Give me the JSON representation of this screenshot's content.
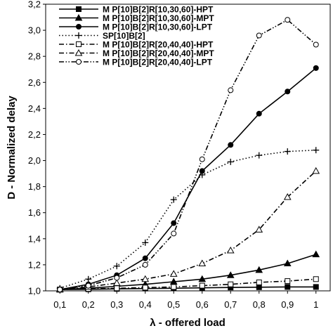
{
  "chart_data": {
    "type": "line",
    "title": "",
    "xlabel": "λ - offered load",
    "ylabel": "D - Normalized delay",
    "x": [
      0.1,
      0.2,
      0.3,
      0.4,
      0.5,
      0.6,
      0.7,
      0.8,
      0.9,
      1.0
    ],
    "x_tick_labels": [
      "0,1",
      "0,2",
      "0,3",
      "0,4",
      "0,5",
      "0,6",
      "0,7",
      "0,8",
      "0,9",
      "1"
    ],
    "y_tick_labels": [
      "1,0",
      "1,2",
      "1,4",
      "1,6",
      "1,8",
      "2,0",
      "2,2",
      "2,4",
      "2,6",
      "2,8",
      "3,0",
      "3,2"
    ],
    "xlim": [
      0.05,
      1.05
    ],
    "ylim": [
      1.0,
      3.2
    ],
    "y_ticks": [
      1.0,
      1.2,
      1.4,
      1.6,
      1.8,
      2.0,
      2.2,
      2.4,
      2.6,
      2.8,
      3.0,
      3.2
    ],
    "grid": false,
    "legend_position": "top-left",
    "series": [
      {
        "name": "M P[10]B[2]R[10,30,60]-HPT",
        "marker": "filled-square",
        "line": "solid",
        "color": "#000000",
        "values": [
          1.01,
          1.012,
          1.015,
          1.018,
          1.02,
          1.023,
          1.026,
          1.028,
          1.03,
          1.03
        ]
      },
      {
        "name": "M P[10]B[2]R[10,30,60]-MPT",
        "marker": "filled-triangle",
        "line": "solid",
        "color": "#000000",
        "values": [
          1.01,
          1.02,
          1.035,
          1.05,
          1.07,
          1.09,
          1.12,
          1.16,
          1.21,
          1.28
        ]
      },
      {
        "name": "M P[10]B[2]R[10,30,60]-LPT",
        "marker": "filled-circle",
        "line": "solid",
        "color": "#000000",
        "values": [
          1.01,
          1.05,
          1.12,
          1.25,
          1.52,
          1.92,
          2.12,
          2.36,
          2.53,
          2.71
        ]
      },
      {
        "name": "SP[10]B[2]",
        "marker": "plus",
        "line": "dotted",
        "color": "#000000",
        "values": [
          1.02,
          1.09,
          1.19,
          1.37,
          1.7,
          1.89,
          1.99,
          2.04,
          2.07,
          2.08
        ]
      },
      {
        "name": "M P[10]B[2]R[20,40,40]-HPT",
        "marker": "open-square",
        "line": "dash-dot",
        "color": "#000000",
        "values": [
          1.01,
          1.015,
          1.02,
          1.025,
          1.03,
          1.04,
          1.05,
          1.065,
          1.075,
          1.09
        ]
      },
      {
        "name": "M P[10]B[2]R[20,40,40]-MPT",
        "marker": "open-triangle",
        "line": "dash-dot",
        "color": "#000000",
        "values": [
          1.01,
          1.03,
          1.06,
          1.09,
          1.13,
          1.21,
          1.31,
          1.47,
          1.72,
          1.92
        ]
      },
      {
        "name": "M P[10]B[2]R[20,40,40]-LPT",
        "marker": "open-circle",
        "line": "dash-dot-dot",
        "color": "#000000",
        "values": [
          1.01,
          1.04,
          1.1,
          1.2,
          1.44,
          2.01,
          2.54,
          2.96,
          3.08,
          2.89
        ]
      }
    ]
  }
}
